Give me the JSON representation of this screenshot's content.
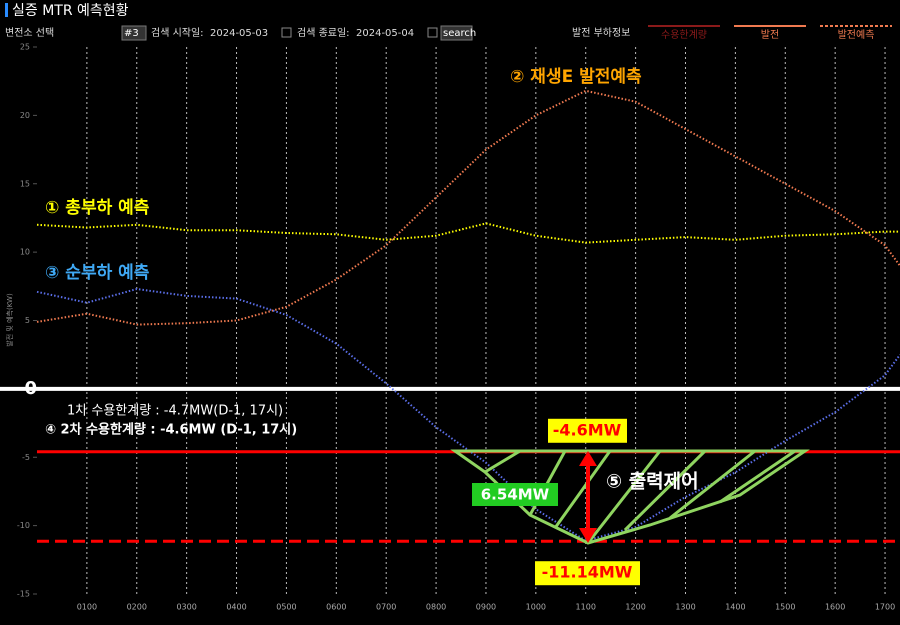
{
  "header": {
    "title": "실증 MTR 예측현황"
  },
  "controls": {
    "substation_label": "변전소 선택",
    "substation": "#3",
    "start_label": "검색 시작일:",
    "start_date": "2024-05-03",
    "end_label": "검색 종료일:",
    "end_date": "2024-05-04",
    "search": "search",
    "info_label": "발전 부하정보"
  },
  "chart_data": {
    "type": "line",
    "y_label": "발전 및 예측(KW)",
    "x": [
      0,
      1,
      2,
      3,
      4,
      5,
      6,
      7,
      8,
      9,
      10,
      11,
      12,
      13,
      14,
      15,
      16,
      17,
      17.3
    ],
    "xlim": [
      0,
      17.3
    ],
    "xticks": [
      {
        "value": 1,
        "label": "0100"
      },
      {
        "value": 2,
        "label": "0200"
      },
      {
        "value": 3,
        "label": "0300"
      },
      {
        "value": 4,
        "label": "0400"
      },
      {
        "value": 5,
        "label": "0500"
      },
      {
        "value": 6,
        "label": "0600"
      },
      {
        "value": 7,
        "label": "0700"
      },
      {
        "value": 8,
        "label": "0800"
      },
      {
        "value": 9,
        "label": "0900"
      },
      {
        "value": 10,
        "label": "1000"
      },
      {
        "value": 11,
        "label": "1100"
      },
      {
        "value": 12,
        "label": "1200"
      },
      {
        "value": 13,
        "label": "1300"
      },
      {
        "value": 14,
        "label": "1400"
      },
      {
        "value": 15,
        "label": "1500"
      },
      {
        "value": 16,
        "label": "1600"
      },
      {
        "value": 17,
        "label": "1700"
      }
    ],
    "ylim": [
      -15,
      25
    ],
    "yticks": [
      25,
      20,
      15,
      10,
      5,
      0,
      -5,
      -10,
      -15
    ],
    "grid": true,
    "series": [
      {
        "name": "① 총부하 예측",
        "color": "#ffff00",
        "values": [
          12.0,
          11.8,
          12.0,
          11.6,
          11.6,
          11.4,
          11.3,
          10.9,
          11.2,
          12.1,
          11.2,
          10.7,
          10.9,
          11.1,
          10.9,
          11.2,
          11.3,
          11.5,
          11.5
        ]
      },
      {
        "name": "② 재생E 발전예측",
        "color": "#f07a50",
        "values": [
          4.9,
          5.5,
          4.7,
          4.8,
          5.0,
          6.0,
          8.0,
          10.5,
          14.0,
          17.5,
          20.0,
          21.8,
          21.0,
          19.0,
          17.0,
          15.0,
          13.0,
          10.5,
          9.0
        ]
      },
      {
        "name": "③ 순부하 예측",
        "color": "#5a6ee8",
        "values": [
          7.1,
          6.3,
          7.3,
          6.8,
          6.6,
          5.4,
          3.3,
          0.4,
          -2.8,
          -5.4,
          -8.8,
          -11.1,
          -10.1,
          -7.9,
          -6.1,
          -3.8,
          -1.7,
          1.0,
          2.5
        ]
      }
    ],
    "reference_lines": [
      {
        "value": -4.6,
        "label": "-4.6MW",
        "color": "#ff0000",
        "dashed": false
      },
      {
        "value": -11.14,
        "label": "-11.14MW",
        "color": "#ff0000",
        "dashed": true
      }
    ],
    "legend": [
      {
        "name": "수용한계량",
        "color": "#8b1a1a",
        "dashed": false
      },
      {
        "name": "발전",
        "color": "#f07a50",
        "dashed": false
      },
      {
        "name": "발전예측",
        "color": "#f07a50",
        "dashed": true
      }
    ],
    "annotations": [
      "1차 수용한계량 : -4.7MW(D-1, 17시)",
      "④ 2차 수용한계량 : -4.6MW (D-1, 17시)",
      "6.54MW",
      "⑤ 출력제어"
    ]
  }
}
